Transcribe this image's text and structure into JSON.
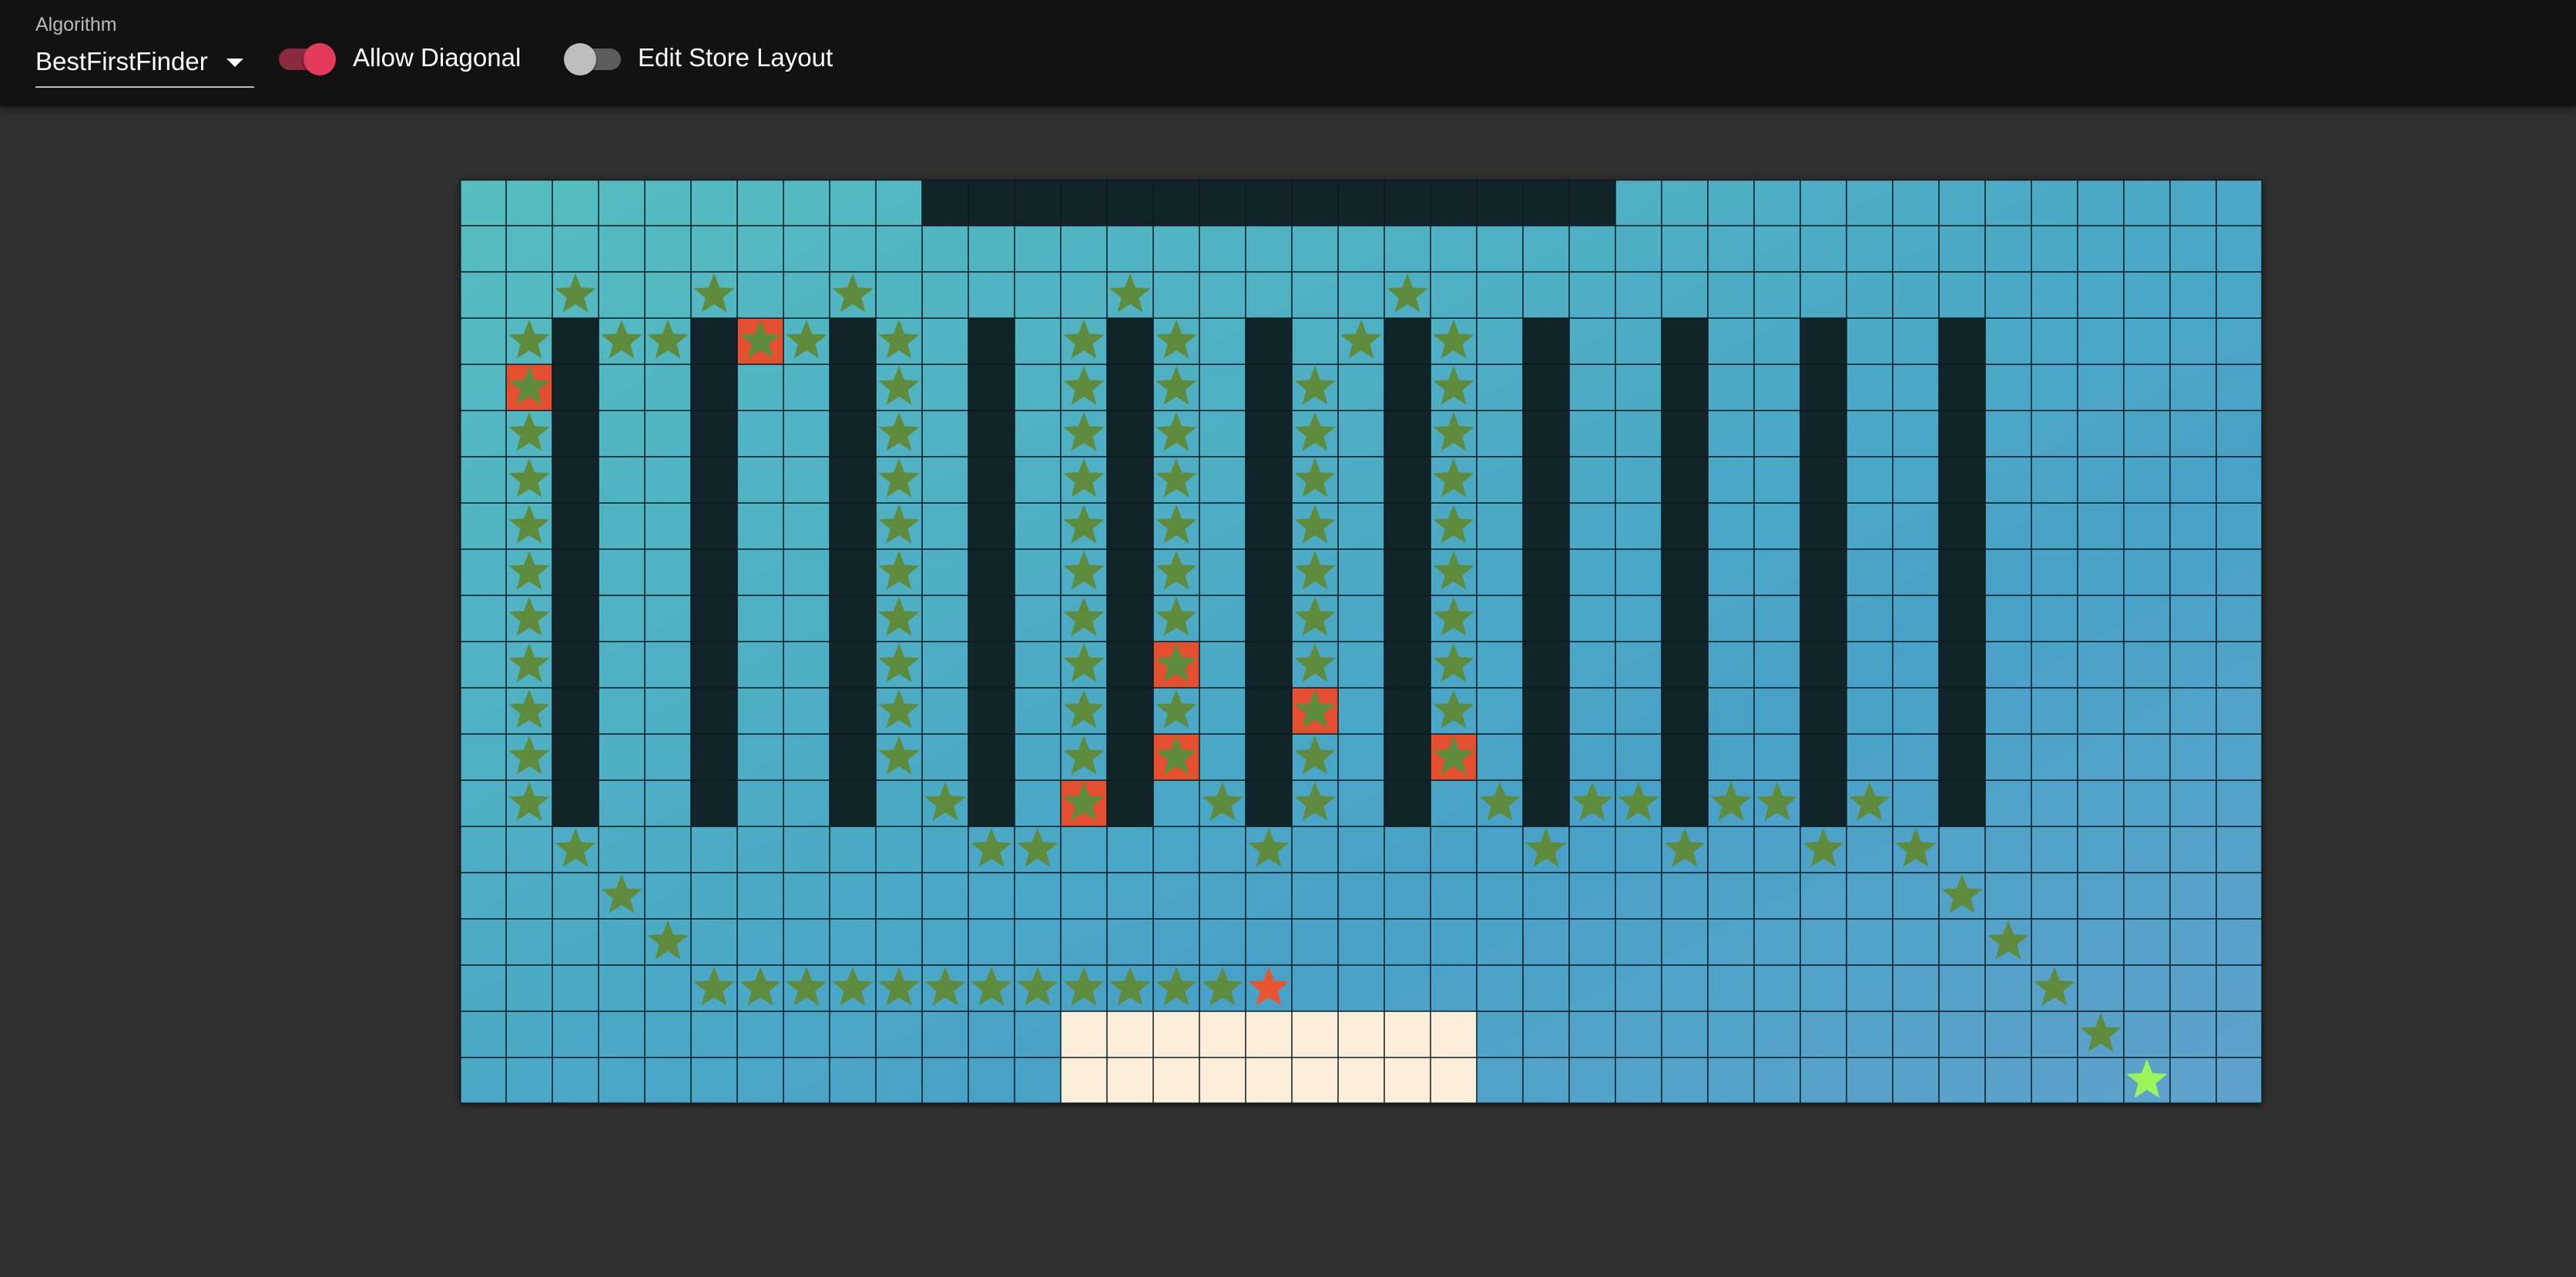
{
  "toolbar": {
    "algorithm_label": "Algorithm",
    "algorithm_value": "BestFirstFinder",
    "allow_diagonal": {
      "label": "Allow Diagonal",
      "checked": true
    },
    "edit_layout": {
      "label": "Edit Store Layout",
      "checked": false
    }
  },
  "grid": {
    "cols": 39,
    "rows": 20,
    "colors": {
      "floor_from": "#56bdc0",
      "floor_to": "#5ea2cc",
      "shelf": "#10242a",
      "checkout": "#fbeedb",
      "visited": "#e44f2f",
      "path_star": "#5e8c3c",
      "current_star": "#e85530",
      "start_star": "#9bf55a",
      "line": "#0d1a1f"
    },
    "shelf_segments": [
      {
        "col_start": 10,
        "col_end": 24,
        "row_start": 0,
        "row_end": 0
      },
      {
        "col": 2,
        "row_start": 3,
        "row_end": 13
      },
      {
        "col": 5,
        "row_start": 3,
        "row_end": 13
      },
      {
        "col": 8,
        "row_start": 3,
        "row_end": 13
      },
      {
        "col": 11,
        "row_start": 3,
        "row_end": 13
      },
      {
        "col": 14,
        "row_start": 3,
        "row_end": 13
      },
      {
        "col": 17,
        "row_start": 3,
        "row_end": 13
      },
      {
        "col": 20,
        "row_start": 3,
        "row_end": 13
      },
      {
        "col": 23,
        "row_start": 3,
        "row_end": 13
      },
      {
        "col": 26,
        "row_start": 3,
        "row_end": 13
      },
      {
        "col": 29,
        "row_start": 3,
        "row_end": 13
      },
      {
        "col": 32,
        "row_start": 3,
        "row_end": 13
      }
    ],
    "checkout_area": {
      "col_start": 13,
      "col_end": 21,
      "row_start": 18,
      "row_end": 19
    },
    "visited_cells": [
      [
        6,
        3
      ],
      [
        1,
        4
      ],
      [
        15,
        10
      ],
      [
        18,
        11
      ],
      [
        15,
        12
      ],
      [
        21,
        12
      ],
      [
        13,
        13
      ]
    ],
    "path_stars": [
      [
        2,
        2
      ],
      [
        5,
        2
      ],
      [
        8,
        2
      ],
      [
        14,
        2
      ],
      [
        20,
        2
      ],
      [
        1,
        3
      ],
      [
        3,
        3
      ],
      [
        4,
        3
      ],
      [
        6,
        3
      ],
      [
        7,
        3
      ],
      [
        9,
        3
      ],
      [
        13,
        3
      ],
      [
        15,
        3
      ],
      [
        19,
        3
      ],
      [
        21,
        3
      ],
      [
        1,
        4
      ],
      [
        9,
        4
      ],
      [
        13,
        4
      ],
      [
        15,
        4
      ],
      [
        18,
        4
      ],
      [
        21,
        4
      ],
      [
        1,
        5
      ],
      [
        9,
        5
      ],
      [
        13,
        5
      ],
      [
        15,
        5
      ],
      [
        18,
        5
      ],
      [
        21,
        5
      ],
      [
        1,
        6
      ],
      [
        9,
        6
      ],
      [
        13,
        6
      ],
      [
        15,
        6
      ],
      [
        18,
        6
      ],
      [
        21,
        6
      ],
      [
        1,
        7
      ],
      [
        9,
        7
      ],
      [
        13,
        7
      ],
      [
        15,
        7
      ],
      [
        18,
        7
      ],
      [
        21,
        7
      ],
      [
        1,
        8
      ],
      [
        9,
        8
      ],
      [
        13,
        8
      ],
      [
        15,
        8
      ],
      [
        18,
        8
      ],
      [
        21,
        8
      ],
      [
        1,
        9
      ],
      [
        9,
        9
      ],
      [
        13,
        9
      ],
      [
        15,
        9
      ],
      [
        18,
        9
      ],
      [
        21,
        9
      ],
      [
        1,
        10
      ],
      [
        9,
        10
      ],
      [
        13,
        10
      ],
      [
        15,
        10
      ],
      [
        18,
        10
      ],
      [
        21,
        10
      ],
      [
        1,
        11
      ],
      [
        9,
        11
      ],
      [
        13,
        11
      ],
      [
        15,
        11
      ],
      [
        18,
        11
      ],
      [
        21,
        11
      ],
      [
        1,
        12
      ],
      [
        9,
        12
      ],
      [
        13,
        12
      ],
      [
        15,
        12
      ],
      [
        18,
        12
      ],
      [
        21,
        12
      ],
      [
        1,
        13
      ],
      [
        10,
        13
      ],
      [
        13,
        13
      ],
      [
        16,
        13
      ],
      [
        18,
        13
      ],
      [
        22,
        13
      ],
      [
        24,
        13
      ],
      [
        25,
        13
      ],
      [
        27,
        13
      ],
      [
        28,
        13
      ],
      [
        30,
        13
      ],
      [
        2,
        14
      ],
      [
        11,
        14
      ],
      [
        12,
        14
      ],
      [
        17,
        14
      ],
      [
        23,
        14
      ],
      [
        26,
        14
      ],
      [
        29,
        14
      ],
      [
        31,
        14
      ],
      [
        3,
        15
      ],
      [
        32,
        15
      ],
      [
        4,
        16
      ],
      [
        33,
        16
      ],
      [
        5,
        17
      ],
      [
        6,
        17
      ],
      [
        7,
        17
      ],
      [
        8,
        17
      ],
      [
        9,
        17
      ],
      [
        10,
        17
      ],
      [
        11,
        17
      ],
      [
        12,
        17
      ],
      [
        13,
        17
      ],
      [
        14,
        17
      ],
      [
        15,
        17
      ],
      [
        16,
        17
      ],
      [
        34,
        17
      ],
      [
        35,
        18
      ]
    ],
    "current_star": [
      17,
      17
    ],
    "start_star": [
      36,
      19
    ]
  }
}
